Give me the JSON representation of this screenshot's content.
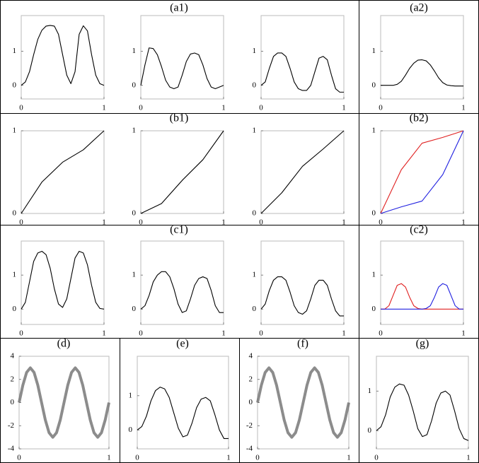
{
  "chart_data": [
    {
      "type": "line",
      "title": "(a1)",
      "x": [
        0,
        0.05,
        0.1,
        0.15,
        0.2,
        0.25,
        0.3,
        0.35,
        0.4,
        0.45,
        0.5,
        0.55,
        0.6,
        0.65,
        0.7,
        0.75,
        0.8,
        0.85,
        0.9,
        0.95,
        1
      ],
      "series": [
        {
          "color": "#000000",
          "values": [
            0,
            0.1,
            0.4,
            0.9,
            1.35,
            1.62,
            1.74,
            1.76,
            1.74,
            1.5,
            0.9,
            0.3,
            0.05,
            0.4,
            1.5,
            1.75,
            1.6,
            0.9,
            0.3,
            0.05,
            0
          ]
        }
      ],
      "xlim": [
        0,
        1
      ],
      "ylim": [
        -0.4,
        2.05
      ],
      "xticks": [
        0,
        1
      ],
      "yticks": [
        0,
        1
      ]
    },
    {
      "type": "line",
      "x": [
        0,
        0.05,
        0.1,
        0.15,
        0.2,
        0.25,
        0.3,
        0.35,
        0.4,
        0.45,
        0.5,
        0.55,
        0.6,
        0.65,
        0.7,
        0.75,
        0.8,
        0.85,
        0.9,
        0.95,
        1
      ],
      "series": [
        {
          "color": "#000000",
          "values": [
            0,
            0.6,
            1.1,
            1.08,
            0.9,
            0.55,
            0.15,
            -0.05,
            -0.1,
            -0.05,
            0.3,
            0.7,
            0.92,
            0.95,
            0.9,
            0.6,
            0.2,
            -0.05,
            -0.1,
            -0.05,
            0
          ]
        }
      ],
      "xlim": [
        0,
        1
      ],
      "ylim": [
        -0.4,
        2.05
      ],
      "xticks": [
        0,
        1
      ],
      "yticks": [
        0,
        1
      ]
    },
    {
      "type": "line",
      "x": [
        0,
        0.05,
        0.1,
        0.15,
        0.2,
        0.25,
        0.3,
        0.35,
        0.4,
        0.45,
        0.5,
        0.55,
        0.6,
        0.65,
        0.7,
        0.75,
        0.8,
        0.85,
        0.9,
        0.95,
        1
      ],
      "series": [
        {
          "color": "#000000",
          "values": [
            0,
            0.1,
            0.5,
            0.85,
            0.95,
            0.95,
            0.85,
            0.5,
            0.1,
            -0.1,
            -0.15,
            -0.15,
            0,
            0.4,
            0.8,
            0.85,
            0.75,
            0.3,
            -0.1,
            -0.2,
            -0.2
          ]
        }
      ],
      "xlim": [
        0,
        1
      ],
      "ylim": [
        -0.4,
        2.05
      ],
      "xticks": [
        0,
        1
      ],
      "yticks": [
        0,
        1
      ]
    },
    {
      "type": "line",
      "title": "(a2)",
      "x": [
        0,
        0.05,
        0.1,
        0.15,
        0.2,
        0.25,
        0.3,
        0.35,
        0.4,
        0.45,
        0.5,
        0.55,
        0.6,
        0.65,
        0.7,
        0.75,
        0.8,
        0.85,
        0.9,
        0.95,
        1
      ],
      "series": [
        {
          "color": "#000000",
          "values": [
            0,
            0,
            0,
            0,
            0.03,
            0.12,
            0.3,
            0.5,
            0.65,
            0.74,
            0.75,
            0.72,
            0.6,
            0.42,
            0.22,
            0.08,
            0.01,
            -0.01,
            -0.02,
            -0.02,
            -0.02
          ]
        }
      ],
      "xlim": [
        0,
        1
      ],
      "ylim": [
        -0.4,
        2.05
      ],
      "xticks": [
        0,
        1
      ],
      "yticks": [
        0,
        1
      ]
    },
    {
      "type": "line",
      "title": "(b1)",
      "x": [
        0,
        0.25,
        0.5,
        0.75,
        1
      ],
      "series": [
        {
          "color": "#000000",
          "values": [
            0,
            0.38,
            0.62,
            0.77,
            1
          ]
        }
      ],
      "xlim": [
        0,
        1
      ],
      "ylim": [
        0,
        1
      ],
      "xticks": [
        0,
        1
      ],
      "yticks": [
        0,
        1
      ]
    },
    {
      "type": "line",
      "x": [
        0,
        0.25,
        0.5,
        0.75,
        1
      ],
      "series": [
        {
          "color": "#000000",
          "values": [
            0,
            0.12,
            0.4,
            0.65,
            1
          ]
        }
      ],
      "xlim": [
        0,
        1
      ],
      "ylim": [
        0,
        1
      ],
      "xticks": [
        0,
        1
      ],
      "yticks": [
        0,
        1
      ]
    },
    {
      "type": "line",
      "x": [
        0,
        0.25,
        0.5,
        0.75,
        1
      ],
      "series": [
        {
          "color": "#000000",
          "values": [
            0,
            0.25,
            0.57,
            0.78,
            1
          ]
        }
      ],
      "xlim": [
        0,
        1
      ],
      "ylim": [
        0,
        1
      ],
      "xticks": [
        0,
        1
      ],
      "yticks": [
        0,
        1
      ]
    },
    {
      "type": "line",
      "title": "(b2)",
      "x": [
        0,
        0.25,
        0.5,
        0.75,
        1
      ],
      "series": [
        {
          "color": "#e02020",
          "values": [
            0,
            0.53,
            0.85,
            0.92,
            1
          ]
        },
        {
          "color": "#2020e0",
          "values": [
            0,
            0.08,
            0.15,
            0.47,
            1
          ]
        }
      ],
      "xlim": [
        0,
        1
      ],
      "ylim": [
        0,
        1
      ],
      "xticks": [
        0,
        1
      ],
      "yticks": [
        0,
        1
      ]
    },
    {
      "type": "line",
      "title": "(c1)",
      "x": [
        0,
        0.05,
        0.1,
        0.15,
        0.2,
        0.25,
        0.3,
        0.35,
        0.4,
        0.45,
        0.5,
        0.55,
        0.6,
        0.65,
        0.7,
        0.75,
        0.8,
        0.85,
        0.9,
        0.95,
        1
      ],
      "series": [
        {
          "color": "#000000",
          "values": [
            0,
            0.2,
            0.8,
            1.4,
            1.65,
            1.7,
            1.6,
            1.2,
            0.6,
            0.15,
            0.05,
            0.3,
            0.9,
            1.5,
            1.7,
            1.65,
            1.3,
            0.7,
            0.2,
            0.02,
            0
          ]
        }
      ],
      "xlim": [
        0,
        1
      ],
      "ylim": [
        -0.45,
        2.0
      ],
      "xticks": [
        0,
        1
      ],
      "yticks": [
        0,
        1
      ]
    },
    {
      "type": "line",
      "x": [
        0,
        0.05,
        0.1,
        0.15,
        0.2,
        0.25,
        0.3,
        0.35,
        0.4,
        0.45,
        0.5,
        0.55,
        0.6,
        0.65,
        0.7,
        0.75,
        0.8,
        0.85,
        0.9,
        0.95,
        1
      ],
      "series": [
        {
          "color": "#000000",
          "values": [
            0,
            0.1,
            0.4,
            0.8,
            1.0,
            1.1,
            1.1,
            0.95,
            0.6,
            0.15,
            -0.1,
            -0.05,
            0.3,
            0.7,
            0.9,
            0.95,
            0.9,
            0.55,
            0.1,
            -0.1,
            -0.1
          ]
        }
      ],
      "xlim": [
        0,
        1
      ],
      "ylim": [
        -0.45,
        2.0
      ],
      "xticks": [
        0,
        1
      ],
      "yticks": [
        0,
        1
      ]
    },
    {
      "type": "line",
      "x": [
        0,
        0.05,
        0.1,
        0.15,
        0.2,
        0.25,
        0.3,
        0.35,
        0.4,
        0.45,
        0.5,
        0.55,
        0.6,
        0.65,
        0.7,
        0.75,
        0.8,
        0.85,
        0.9,
        0.95,
        1
      ],
      "series": [
        {
          "color": "#000000",
          "values": [
            0,
            0.15,
            0.55,
            0.85,
            0.95,
            0.95,
            0.85,
            0.5,
            0.1,
            -0.1,
            -0.15,
            -0.05,
            0.3,
            0.7,
            0.85,
            0.85,
            0.7,
            0.3,
            -0.05,
            -0.2,
            -0.2
          ]
        }
      ],
      "xlim": [
        0,
        1
      ],
      "ylim": [
        -0.45,
        2.0
      ],
      "xticks": [
        0,
        1
      ],
      "yticks": [
        0,
        1
      ]
    },
    {
      "type": "line",
      "title": "(c2)",
      "x": [
        0,
        0.05,
        0.1,
        0.15,
        0.2,
        0.25,
        0.3,
        0.35,
        0.4,
        0.45,
        0.5,
        0.55,
        0.6,
        0.65,
        0.7,
        0.75,
        0.8,
        0.85,
        0.9,
        0.95,
        1
      ],
      "series": [
        {
          "color": "#e02020",
          "values": [
            0,
            0,
            0.1,
            0.4,
            0.7,
            0.75,
            0.65,
            0.35,
            0.1,
            0.02,
            0,
            0,
            0,
            0,
            0,
            0,
            0,
            0,
            0,
            0,
            0
          ]
        },
        {
          "color": "#2020e0",
          "values": [
            0,
            0,
            0,
            0,
            0,
            0,
            0,
            0,
            0,
            0,
            0,
            0.02,
            0.1,
            0.35,
            0.65,
            0.75,
            0.7,
            0.4,
            0.1,
            0,
            0
          ]
        }
      ],
      "xlim": [
        0,
        1
      ],
      "ylim": [
        -0.45,
        2.0
      ],
      "xticks": [
        0,
        1
      ],
      "yticks": [
        0,
        1
      ]
    },
    {
      "type": "line",
      "title": "(d)",
      "x": [
        0,
        0.0417,
        0.0833,
        0.125,
        0.1667,
        0.2083,
        0.25,
        0.2917,
        0.3333,
        0.375,
        0.4167,
        0.4583,
        0.5,
        0.5417,
        0.5833,
        0.625,
        0.6667,
        0.7083,
        0.75,
        0.7917,
        0.8333,
        0.875,
        0.9167,
        0.9583,
        1
      ],
      "series": [
        {
          "color": "#666666",
          "line_width": 4,
          "values": [
            0,
            1.5,
            2.6,
            3,
            2.6,
            1.5,
            0,
            -1.5,
            -2.6,
            -3,
            -2.6,
            -1.5,
            0,
            1.5,
            2.6,
            3,
            2.6,
            1.5,
            0,
            -1.5,
            -2.6,
            -3,
            -2.6,
            -1.5,
            0
          ]
        }
      ],
      "xlim": [
        0,
        1
      ],
      "ylim": [
        -4,
        4
      ],
      "xticks": [
        0,
        1
      ],
      "yticks": [
        -4,
        -2,
        0,
        2,
        4
      ]
    },
    {
      "type": "line",
      "title": "(e)",
      "x": [
        0,
        0.05,
        0.1,
        0.15,
        0.2,
        0.25,
        0.3,
        0.35,
        0.4,
        0.45,
        0.5,
        0.55,
        0.6,
        0.65,
        0.7,
        0.75,
        0.8,
        0.85,
        0.9,
        0.95,
        1
      ],
      "series": [
        {
          "color": "#000000",
          "values": [
            0,
            0.1,
            0.4,
            0.85,
            1.15,
            1.25,
            1.2,
            0.95,
            0.5,
            0.05,
            -0.2,
            -0.15,
            0.2,
            0.65,
            0.9,
            0.95,
            0.85,
            0.45,
            0,
            -0.25,
            -0.25
          ]
        }
      ],
      "xlim": [
        0,
        1
      ],
      "ylim": [
        -0.55,
        2.15
      ],
      "xticks": [
        0,
        1
      ],
      "yticks": [
        0,
        1
      ]
    },
    {
      "type": "line",
      "title": "(f)",
      "x": [
        0,
        0.0417,
        0.0833,
        0.125,
        0.1667,
        0.2083,
        0.25,
        0.2917,
        0.3333,
        0.375,
        0.4167,
        0.4583,
        0.5,
        0.5417,
        0.5833,
        0.625,
        0.6667,
        0.7083,
        0.75,
        0.7917,
        0.8333,
        0.875,
        0.9167,
        0.9583,
        1
      ],
      "series": [
        {
          "color": "#666666",
          "line_width": 4,
          "values": [
            0,
            1.5,
            2.6,
            3,
            2.6,
            1.5,
            0,
            -1.5,
            -2.6,
            -3,
            -2.6,
            -1.5,
            0,
            1.5,
            2.6,
            3,
            2.6,
            1.5,
            0,
            -1.5,
            -2.6,
            -3,
            -2.6,
            -1.5,
            0
          ]
        }
      ],
      "xlim": [
        0,
        1
      ],
      "ylim": [
        -4,
        4
      ],
      "xticks": [
        0,
        1
      ],
      "yticks": [
        -4,
        -2,
        0,
        2,
        4
      ]
    },
    {
      "type": "line",
      "title": "(g)",
      "x": [
        0,
        0.05,
        0.1,
        0.15,
        0.2,
        0.25,
        0.3,
        0.35,
        0.4,
        0.45,
        0.5,
        0.55,
        0.6,
        0.65,
        0.7,
        0.75,
        0.8,
        0.85,
        0.9,
        0.95,
        1
      ],
      "series": [
        {
          "color": "#000000",
          "values": [
            0,
            0.1,
            0.4,
            0.85,
            1.1,
            1.18,
            1.15,
            0.9,
            0.5,
            0.05,
            -0.15,
            -0.1,
            0.25,
            0.7,
            0.95,
            1.0,
            0.9,
            0.5,
            0.05,
            -0.2,
            -0.25
          ]
        }
      ],
      "xlim": [
        0,
        1
      ],
      "ylim": [
        -0.46,
        1.88
      ],
      "xticks": [
        0,
        1
      ],
      "yticks": [
        0,
        1
      ]
    }
  ]
}
